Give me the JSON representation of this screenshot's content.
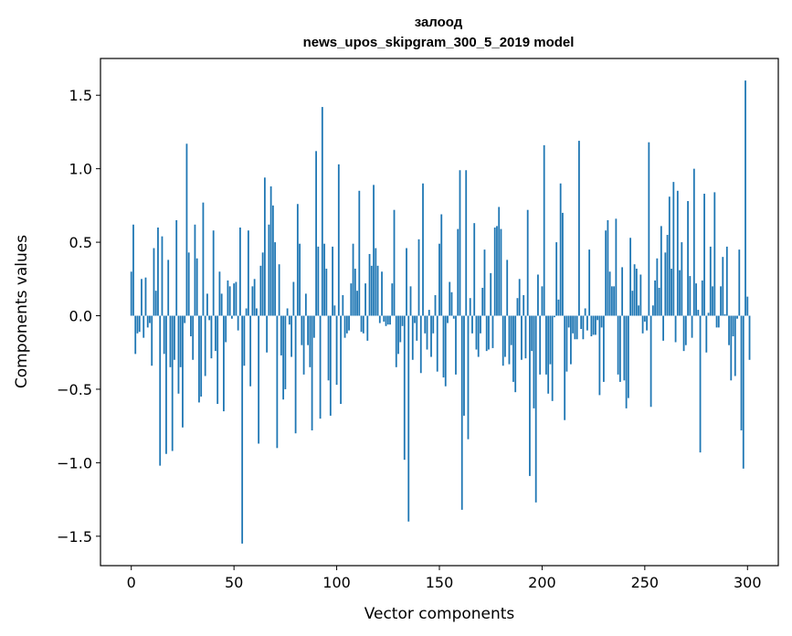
{
  "chart_data": {
    "type": "bar",
    "title": "залоод",
    "subtitle": "news_upos_skipgram_300_5_2019 model",
    "xlabel": "Vector components",
    "ylabel": "Components values",
    "xlim": [
      -15,
      315
    ],
    "ylim": [
      -1.7,
      1.75
    ],
    "xticks": [
      0,
      50,
      100,
      150,
      200,
      250,
      300
    ],
    "xtick_labels": [
      "0",
      "50",
      "100",
      "150",
      "200",
      "250",
      "300"
    ],
    "yticks": [
      -1.5,
      -1.0,
      -0.5,
      0.0,
      0.5,
      1.0,
      1.5
    ],
    "ytick_labels": [
      "−1.5",
      "−1.0",
      "−0.5",
      "0.0",
      "0.5",
      "1.0",
      "1.5"
    ],
    "bar_color": "#1f77b4",
    "grid": false,
    "values": [
      0.3,
      0.62,
      -0.26,
      -0.12,
      -0.11,
      0.25,
      -0.15,
      0.26,
      -0.08,
      -0.05,
      -0.34,
      0.46,
      0.17,
      0.6,
      -1.02,
      0.54,
      -0.26,
      -0.94,
      0.38,
      -0.35,
      -0.92,
      -0.3,
      0.65,
      -0.53,
      -0.35,
      -0.76,
      -0.05,
      1.17,
      0.43,
      -0.14,
      -0.3,
      0.62,
      0.39,
      -0.59,
      -0.55,
      0.77,
      -0.41,
      0.15,
      -0.03,
      -0.29,
      0.58,
      -0.24,
      -0.6,
      0.3,
      0.15,
      -0.65,
      -0.18,
      0.24,
      0.2,
      -0.02,
      0.22,
      0.23,
      -0.1,
      0.6,
      -1.55,
      -0.34,
      0.05,
      0.58,
      -0.48,
      0.2,
      0.25,
      0.05,
      -0.87,
      0.34,
      0.43,
      0.94,
      -0.25,
      0.62,
      0.88,
      0.75,
      0.5,
      -0.9,
      0.35,
      -0.27,
      -0.57,
      -0.5,
      0.05,
      -0.06,
      -0.28,
      0.23,
      -0.8,
      0.76,
      0.49,
      -0.2,
      -0.4,
      0.15,
      -0.2,
      -0.35,
      -0.78,
      -0.15,
      1.12,
      0.47,
      -0.7,
      1.42,
      0.49,
      0.32,
      -0.44,
      -0.68,
      0.47,
      0.07,
      -0.47,
      1.03,
      -0.6,
      0.14,
      -0.15,
      -0.12,
      -0.1,
      0.22,
      0.49,
      0.32,
      0.17,
      0.85,
      -0.11,
      -0.12,
      0.22,
      -0.17,
      0.42,
      0.34,
      0.89,
      0.46,
      0.34,
      -0.05,
      0.3,
      -0.04,
      -0.07,
      -0.06,
      -0.06,
      0.22,
      0.72,
      -0.35,
      -0.26,
      -0.18,
      -0.07,
      -0.98,
      0.46,
      -1.4,
      0.2,
      -0.3,
      -0.05,
      -0.17,
      0.52,
      -0.39,
      0.9,
      -0.12,
      -0.23,
      0.04,
      -0.28,
      -0.12,
      0.14,
      -0.38,
      0.49,
      0.69,
      -0.42,
      -0.48,
      -0.05,
      0.23,
      0.16,
      -0.02,
      -0.4,
      0.59,
      0.99,
      -1.32,
      -0.68,
      0.99,
      -0.84,
      0.12,
      -0.12,
      0.63,
      -0.23,
      -0.28,
      -0.12,
      0.19,
      0.45,
      -0.24,
      -0.23,
      0.29,
      -0.22,
      0.6,
      0.61,
      0.74,
      0.59,
      -0.34,
      -0.28,
      0.38,
      -0.33,
      -0.2,
      -0.45,
      -0.52,
      0.12,
      0.25,
      -0.3,
      0.14,
      -0.29,
      0.72,
      -1.09,
      -0.24,
      -0.63,
      -1.27,
      0.28,
      -0.4,
      0.2,
      1.16,
      -0.4,
      -0.53,
      -0.33,
      -0.58,
      -0.01,
      0.5,
      0.11,
      0.9,
      0.7,
      -0.71,
      -0.38,
      -0.08,
      -0.33,
      -0.12,
      -0.16,
      -0.16,
      1.19,
      -0.09,
      -0.16,
      0.05,
      -0.1,
      0.45,
      -0.14,
      -0.13,
      -0.13,
      -0.03,
      -0.54,
      -0.08,
      -0.45,
      0.58,
      0.65,
      0.3,
      0.2,
      0.2,
      0.66,
      -0.4,
      -0.45,
      0.33,
      -0.44,
      -0.63,
      -0.56,
      0.53,
      0.17,
      0.35,
      0.32,
      0.07,
      0.28,
      -0.12,
      -0.04,
      -0.1,
      1.18,
      -0.62,
      0.07,
      0.24,
      0.39,
      0.19,
      0.61,
      -0.17,
      0.43,
      0.55,
      0.81,
      0.32,
      0.91,
      -0.18,
      0.85,
      0.31,
      0.5,
      -0.24,
      -0.2,
      0.78,
      0.27,
      -0.15,
      1.0,
      0.22,
      0.04,
      -0.93,
      0.24,
      0.83,
      -0.25,
      0.02,
      0.47,
      0.2,
      0.84,
      -0.08,
      -0.08,
      0.2,
      0.4,
      0.01,
      0.47,
      -0.2,
      -0.44,
      -0.14,
      -0.41,
      -0.02,
      0.45,
      -0.78,
      -1.04,
      1.6,
      0.13,
      -0.3
    ]
  }
}
